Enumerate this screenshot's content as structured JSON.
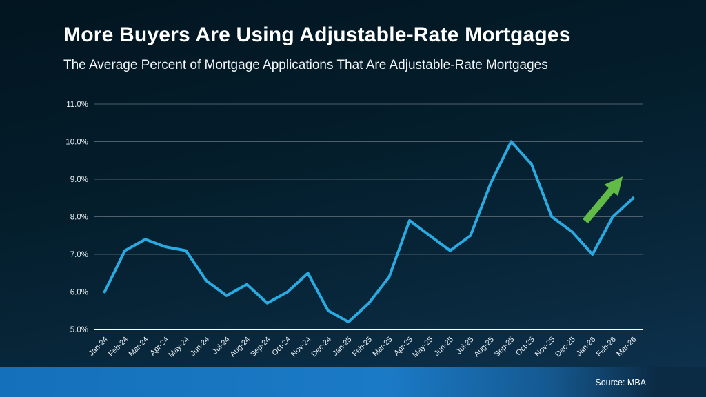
{
  "slide": {
    "title": "More Buyers Are Using Adjustable-Rate Mortgages",
    "subtitle": "The Average Percent of Mortgage Applications That Are Adjustable-Rate Mortgages",
    "source": "Source: MBA"
  },
  "colors": {
    "line": "#29ABE2",
    "arrow_green": "#62BB46",
    "gridline": "#4F5F6B",
    "axis_line": "#FFFFFF",
    "tick_label": "#E8EEF2",
    "footer_blue": "#1977C3",
    "footer_dark": "#0B2A44"
  },
  "chart_data": {
    "type": "line",
    "title": "The Average Percent of Mortgage Applications That Are Adjustable-Rate Mortgages",
    "categories": [
      "Jan-24",
      "Feb-24",
      "Mar-24",
      "Apr-24",
      "May-24",
      "Jun-24",
      "Jul-24",
      "Aug-24",
      "Sep-24",
      "Oct-24",
      "Nov-24",
      "Dec-24",
      "Jan-25",
      "Feb-25",
      "Mar-25",
      "Apr-25",
      "May-25",
      "Jun-25",
      "Jul-25",
      "Aug-25",
      "Sep-25",
      "Oct-25",
      "Nov-25",
      "Dec-25",
      "Jan-26",
      "Feb-26",
      "Mar-26"
    ],
    "values": [
      6.0,
      7.1,
      7.4,
      7.2,
      7.1,
      6.3,
      5.9,
      6.2,
      5.7,
      6.0,
      6.5,
      5.5,
      5.2,
      5.7,
      6.4,
      7.9,
      7.5,
      7.1,
      7.5,
      8.9,
      10.0,
      9.4,
      8.0,
      7.6,
      7.0,
      8.0,
      8.5
    ],
    "xlabel": "",
    "ylabel": "",
    "ylim": [
      5.0,
      11.0
    ],
    "ytick_step": 1.0,
    "ytick_labels": [
      "11.0%",
      "10.0%",
      "9.0%",
      "8.0%",
      "7.0%",
      "6.0%",
      "5.0%"
    ],
    "grid": true,
    "legend": false,
    "annotations": [
      {
        "type": "arrow-up-right",
        "color": "#62BB46",
        "span": "Dec-25 to Mar-26 region"
      }
    ]
  }
}
